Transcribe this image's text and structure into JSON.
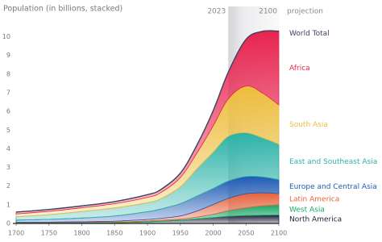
{
  "chart_data": {
    "type": "stacked-area",
    "y_label": "Population (in billions, stacked)",
    "x": [
      1700,
      1750,
      1800,
      1850,
      1900,
      1920,
      1950,
      1975,
      2000,
      2023,
      2050,
      2075,
      2100
    ],
    "series": [
      {
        "name": "North America",
        "color": "#1b1f3b",
        "values": [
          0.01,
          0.02,
          0.03,
          0.04,
          0.09,
          0.12,
          0.17,
          0.24,
          0.31,
          0.38,
          0.42,
          0.44,
          0.45
        ]
      },
      {
        "name": "West Asia",
        "color": "#17a865",
        "values": [
          0.03,
          0.03,
          0.03,
          0.03,
          0.04,
          0.05,
          0.06,
          0.1,
          0.18,
          0.3,
          0.42,
          0.5,
          0.55
        ]
      },
      {
        "name": "Latin America",
        "color": "#e8623a",
        "values": [
          0.02,
          0.02,
          0.03,
          0.05,
          0.08,
          0.1,
          0.17,
          0.32,
          0.52,
          0.66,
          0.75,
          0.7,
          0.6
        ]
      },
      {
        "name": "Europe and Central Asia",
        "color": "#1f5bb5",
        "values": [
          0.12,
          0.15,
          0.2,
          0.28,
          0.42,
          0.5,
          0.66,
          0.8,
          0.86,
          0.93,
          0.92,
          0.85,
          0.75
        ]
      },
      {
        "name": "East and Southeast Asia",
        "color": "#2bb3a8",
        "values": [
          0.18,
          0.25,
          0.35,
          0.43,
          0.48,
          0.55,
          0.9,
          1.45,
          1.95,
          2.4,
          2.35,
          2.1,
          1.9
        ]
      },
      {
        "name": "South Asia",
        "color": "#eebd3c",
        "values": [
          0.15,
          0.18,
          0.2,
          0.23,
          0.29,
          0.33,
          0.5,
          0.85,
          1.4,
          2.0,
          2.5,
          2.4,
          2.1
        ]
      },
      {
        "name": "Africa",
        "color": "#e8244f",
        "values": [
          0.1,
          0.1,
          0.1,
          0.11,
          0.14,
          0.16,
          0.23,
          0.42,
          0.82,
          1.43,
          2.5,
          3.3,
          3.95
        ]
      }
    ],
    "total_label": "World Total",
    "total_color": "#3d4260",
    "projection": {
      "label": "projection",
      "from": 2023,
      "to": 2100
    },
    "xlim": [
      1700,
      2100
    ],
    "xticks": [
      1700,
      1750,
      1800,
      1850,
      1900,
      1950,
      2000,
      2050,
      2100
    ],
    "ylim": [
      0,
      10.5
    ],
    "yticks": [
      0,
      1,
      2,
      3,
      4,
      5,
      6,
      7,
      8,
      9,
      10
    ],
    "grid": false
  }
}
